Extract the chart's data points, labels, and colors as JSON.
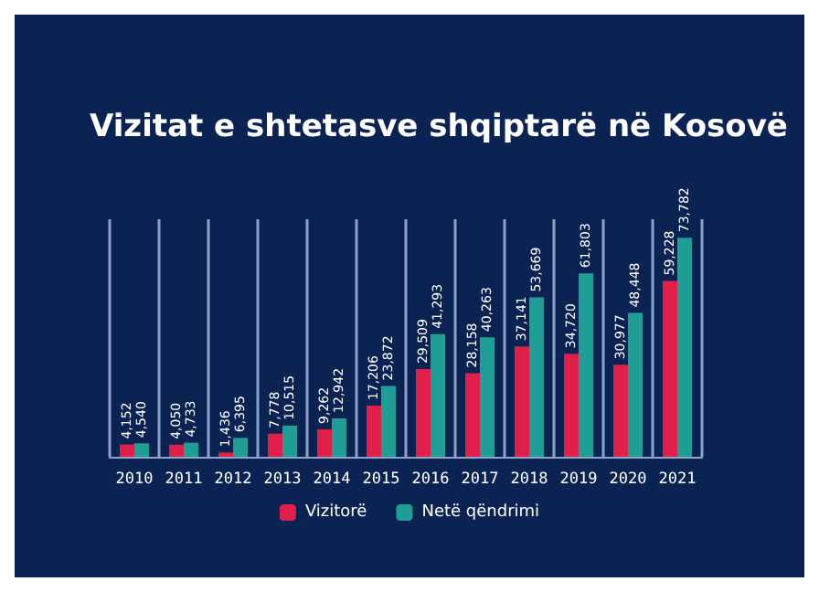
{
  "chart_data": {
    "type": "bar",
    "title": "Vizitat e shtetasve shqiptarë në Kosovë",
    "categories": [
      "2010",
      "2011",
      "2012",
      "2013",
      "2014",
      "2015",
      "2016",
      "2017",
      "2018",
      "2019",
      "2020",
      "2021"
    ],
    "series": [
      {
        "name": "Vizitorë",
        "color": "#e0204a",
        "values": [
          4152,
          4050,
          1436,
          7778,
          9262,
          17206,
          29509,
          28158,
          37141,
          34720,
          30977,
          59228
        ],
        "value_labels": [
          "4,152",
          "4,050",
          "1,436",
          "7,778",
          "9,262",
          "17,206",
          "29,509",
          "28,158",
          "37,141",
          "34,720",
          "30,977",
          "59,228"
        ]
      },
      {
        "name": "Netë qëndrimi",
        "color": "#1f9e96",
        "values": [
          4540,
          4733,
          6395,
          10515,
          12942,
          23872,
          41293,
          40263,
          53669,
          61803,
          48448,
          73782
        ],
        "value_labels": [
          "4,540",
          "4,733",
          "6,395",
          "10,515",
          "12,942",
          "23,872",
          "41,293",
          "40,263",
          "53,669",
          "61,803",
          "48,448",
          "73,782"
        ]
      }
    ],
    "grid": "x",
    "legend": "bottom"
  }
}
